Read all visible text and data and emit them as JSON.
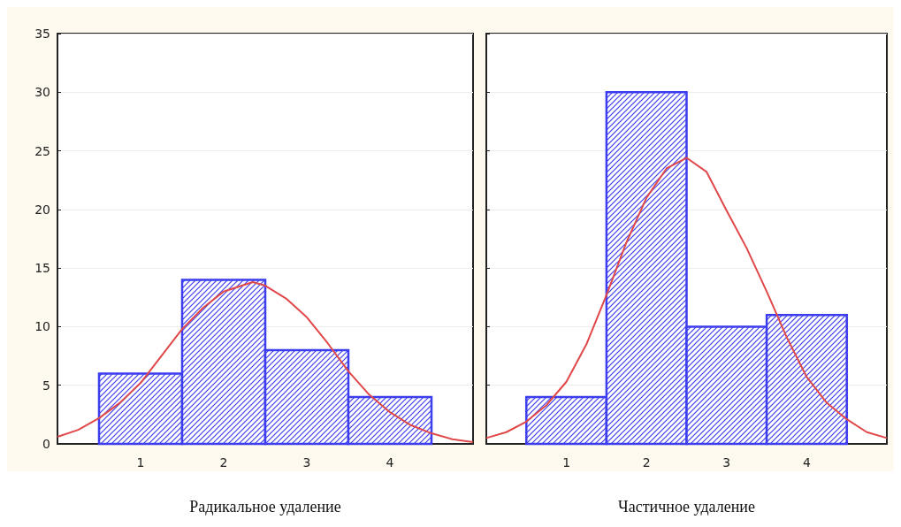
{
  "chart_data": [
    {
      "type": "histogram",
      "xlabel": "Радикальное удаление",
      "bins": [
        0.5,
        1.5,
        2.5,
        3.5,
        4.5
      ],
      "values": [
        6,
        14,
        8,
        4
      ],
      "color": "#3c3cf0",
      "series": [
        {
          "type": "line",
          "color": "#e0484a",
          "x": [
            0,
            0.25,
            0.5,
            0.75,
            1,
            1.25,
            1.5,
            1.75,
            2,
            2.35,
            2.5,
            2.75,
            3,
            3.25,
            3.5,
            3.75,
            4,
            4.25,
            4.5,
            4.75,
            5
          ],
          "values": [
            0.6,
            1.2,
            2.2,
            3.5,
            5.2,
            7.5,
            9.8,
            11.6,
            13,
            13.8,
            13.5,
            12.4,
            10.8,
            8.6,
            6.2,
            4.2,
            2.7,
            1.6,
            0.9,
            0.4,
            0.15
          ]
        }
      ],
      "xlim": [
        0,
        5
      ],
      "xticks": [
        1,
        2,
        3,
        4
      ],
      "ylim": [
        0,
        35
      ],
      "yticks": [
        0,
        5,
        10,
        15,
        20,
        25,
        30,
        35
      ],
      "grid": "y",
      "marker": "none"
    },
    {
      "type": "histogram",
      "xlabel": "Частичное удаление",
      "bins": [
        0.5,
        1.5,
        2.5,
        3.5,
        4.5
      ],
      "values": [
        4,
        30,
        10,
        11
      ],
      "color": "#3c3cf0",
      "series": [
        {
          "type": "line",
          "color": "#e0484a",
          "x": [
            0,
            0.25,
            0.5,
            0.75,
            1,
            1.25,
            1.5,
            1.75,
            2,
            2.25,
            2.5,
            2.75,
            3,
            3.25,
            3.5,
            3.75,
            4,
            4.25,
            4.5,
            4.75,
            5
          ],
          "values": [
            0.5,
            1,
            1.9,
            3.3,
            5.3,
            8.5,
            12.7,
            17.2,
            21,
            23.5,
            24.4,
            23.2,
            19.9,
            16.7,
            13,
            9.1,
            5.7,
            3.5,
            2.1,
            1,
            0.5
          ]
        }
      ],
      "xlim": [
        0,
        5
      ],
      "xticks": [
        1,
        2,
        3,
        4
      ],
      "ylim": [
        0,
        35
      ],
      "yticks": [
        0,
        5,
        10,
        15,
        20,
        25,
        30,
        35
      ],
      "grid": "y",
      "marker": "none",
      "tick_labels": "x"
    }
  ]
}
